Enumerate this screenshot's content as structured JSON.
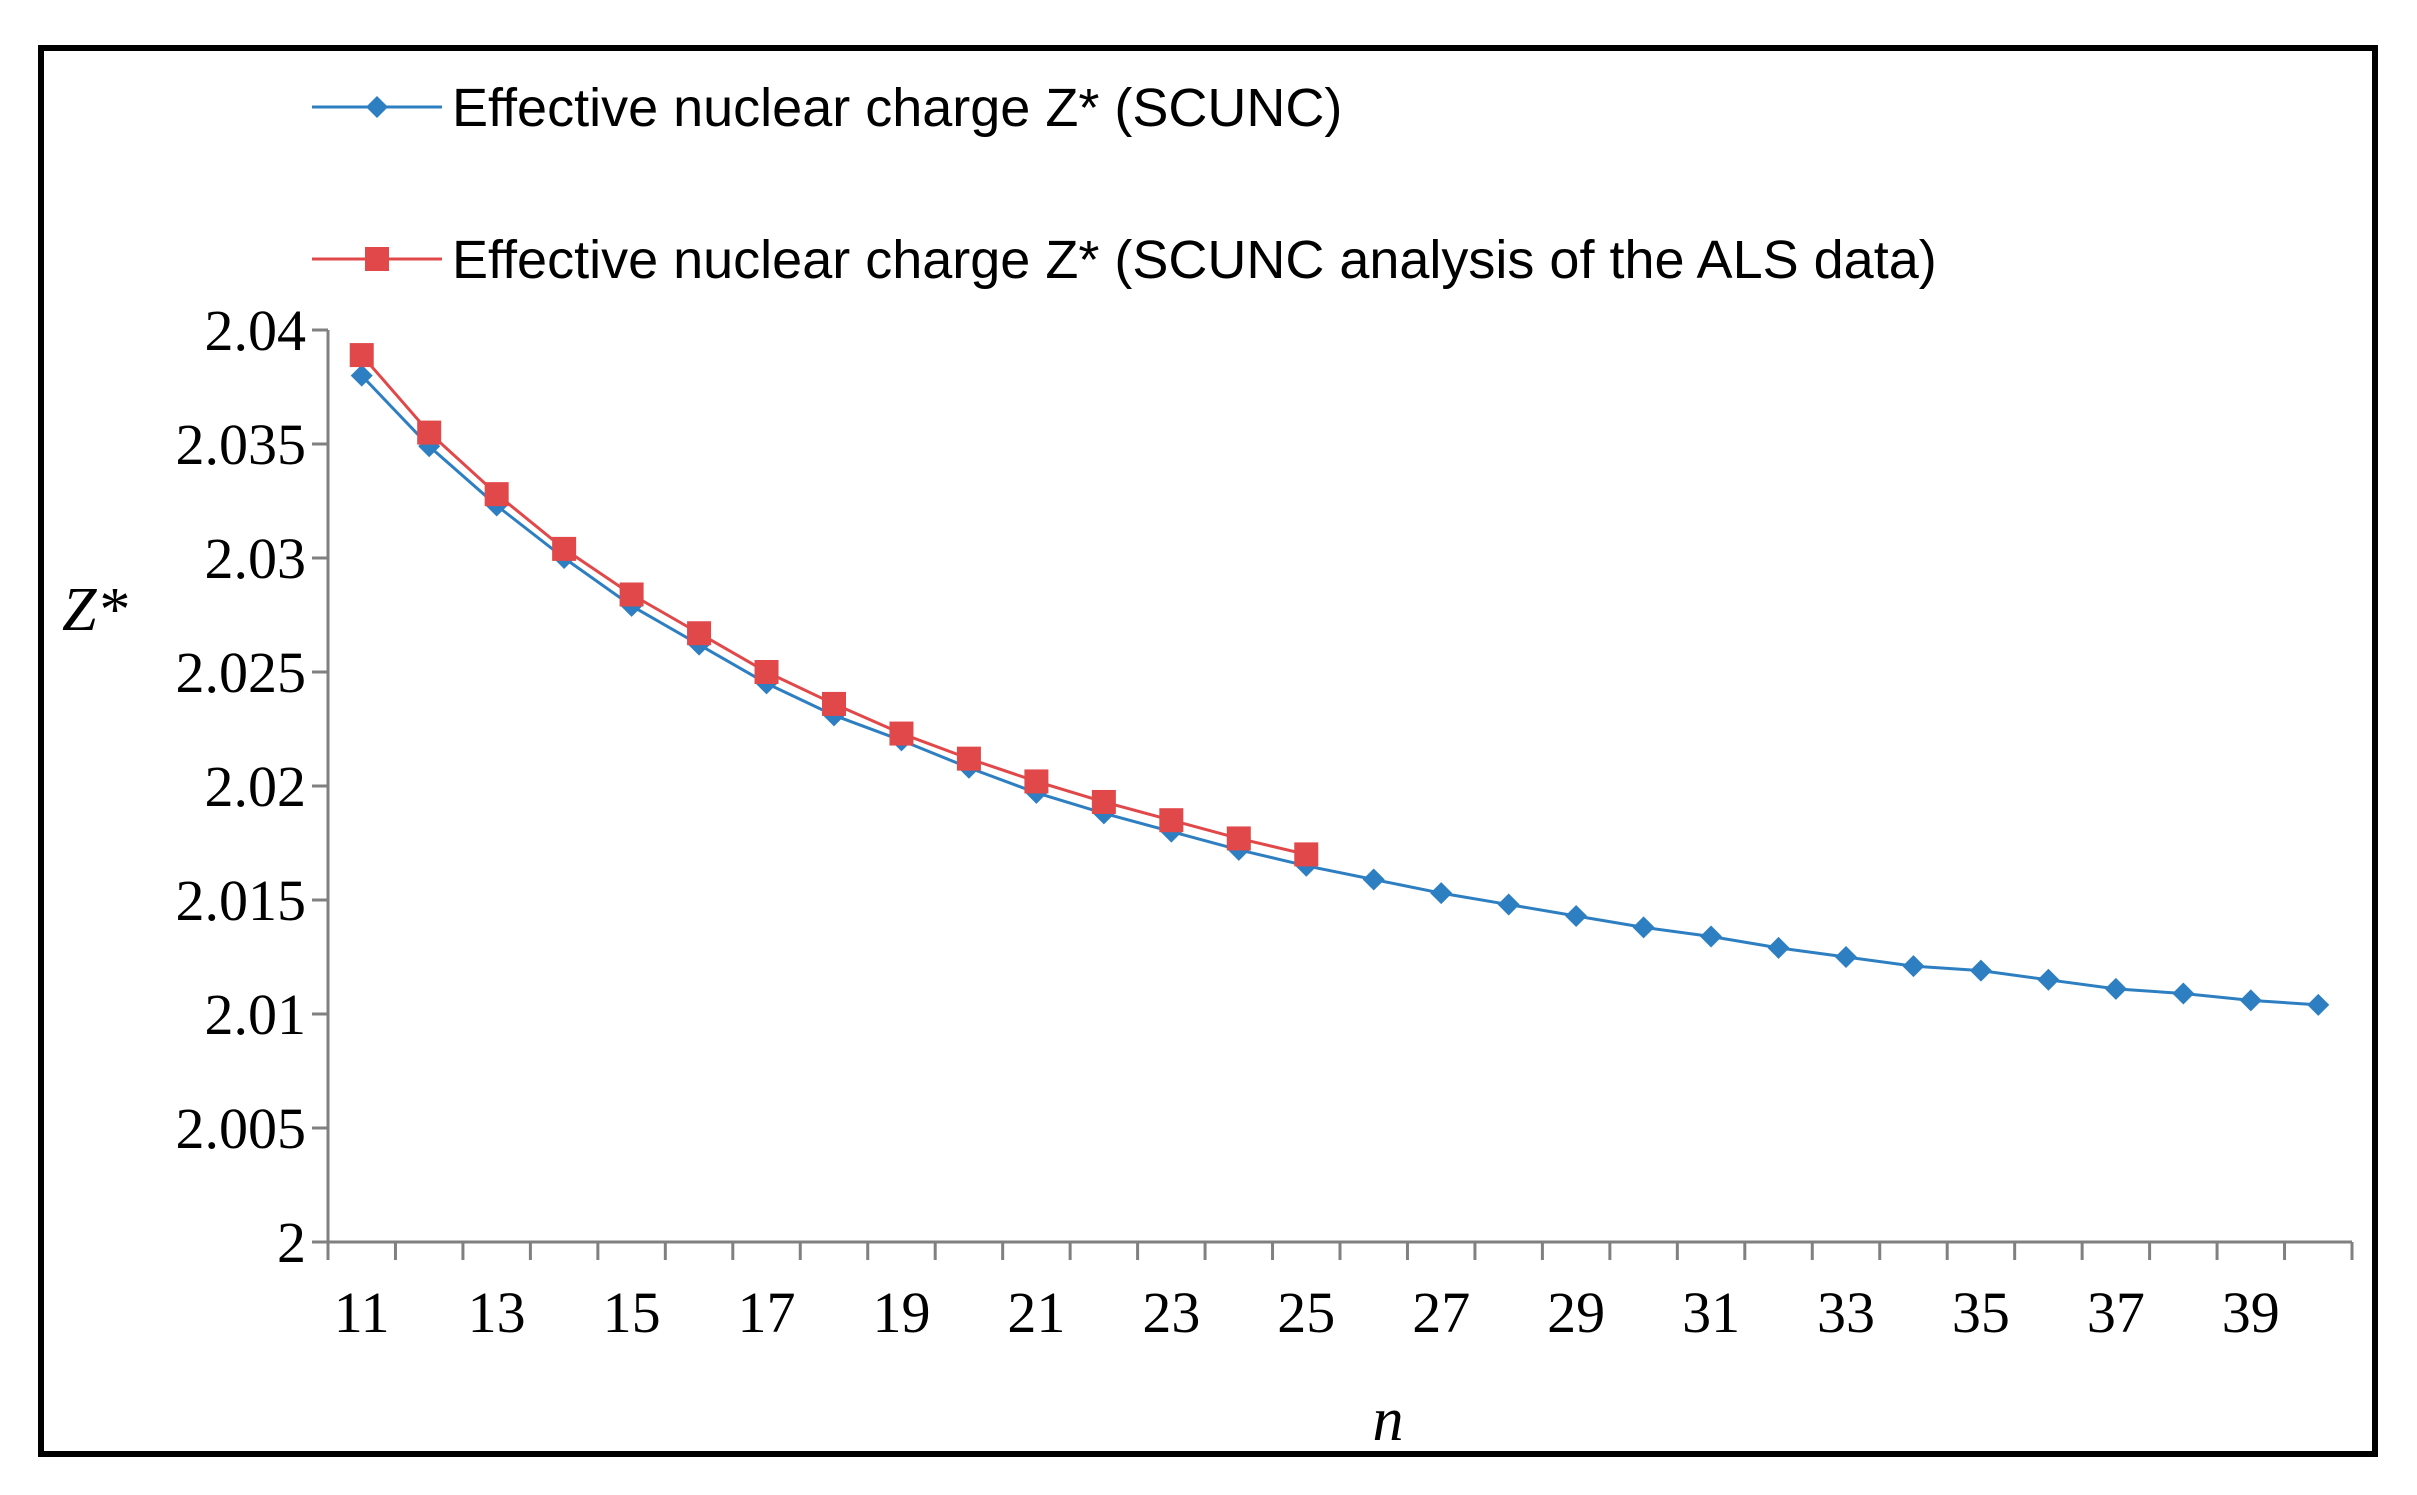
{
  "chart_data": {
    "type": "line",
    "title": "",
    "xlabel": "n",
    "ylabel": "Z*",
    "xlim": [
      10.5,
      40.5
    ],
    "ylim": [
      2,
      2.04
    ],
    "x_tick_labels": [
      "11",
      "13",
      "15",
      "17",
      "19",
      "21",
      "23",
      "25",
      "27",
      "29",
      "31",
      "33",
      "35",
      "37",
      "39"
    ],
    "y_tick_labels": [
      "2",
      "2.005",
      "2.01",
      "2.015",
      "2.02",
      "2.025",
      "2.03",
      "2.035",
      "2.04"
    ],
    "legend_position": "top",
    "grid": false,
    "series": [
      {
        "name": "Effective nuclear charge Z* (SCUNC)",
        "color": "#2e7fc2",
        "marker": "diamond",
        "x": [
          11,
          12,
          13,
          14,
          15,
          16,
          17,
          18,
          19,
          20,
          21,
          22,
          23,
          24,
          25,
          26,
          27,
          28,
          29,
          30,
          31,
          32,
          33,
          34,
          35,
          36,
          37,
          38,
          39,
          40
        ],
        "y": [
          2.038,
          2.0349,
          2.0323,
          2.03,
          2.0279,
          2.0262,
          2.0245,
          2.0231,
          2.022,
          2.0208,
          2.0197,
          2.0188,
          2.018,
          2.0172,
          2.0165,
          2.0159,
          2.0153,
          2.0148,
          2.0143,
          2.0138,
          2.0134,
          2.0129,
          2.0125,
          2.0121,
          2.0119,
          2.0115,
          2.0111,
          2.0109,
          2.0106,
          2.0104
        ]
      },
      {
        "name": "Effective nuclear charge Z* (SCUNC analysis of the ALS data)",
        "color": "#e0484a",
        "marker": "square",
        "x": [
          11,
          12,
          13,
          14,
          15,
          16,
          17,
          18,
          19,
          20,
          21,
          22,
          23,
          24,
          25
        ],
        "y": [
          2.0389,
          2.0355,
          2.0328,
          2.0304,
          2.0284,
          2.0267,
          2.025,
          2.0236,
          2.0223,
          2.0212,
          2.0202,
          2.0193,
          2.0185,
          2.0177,
          2.017
        ]
      }
    ]
  }
}
